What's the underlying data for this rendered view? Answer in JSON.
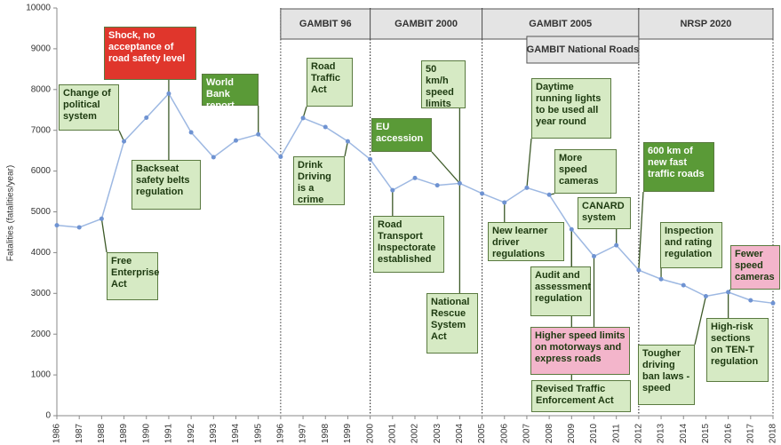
{
  "chart_data": {
    "type": "line",
    "y_label": "Fatalities (fatalities/year)",
    "x": [
      1986,
      1987,
      1988,
      1989,
      1990,
      1991,
      1992,
      1993,
      1994,
      1995,
      1996,
      1997,
      1998,
      1999,
      2000,
      2001,
      2002,
      2003,
      2004,
      2005,
      2006,
      2007,
      2008,
      2009,
      2010,
      2011,
      2012,
      2013,
      2014,
      2015,
      2016,
      2017,
      2018
    ],
    "series": [
      {
        "name": "Fatalities",
        "color": "#9db8e2",
        "values": [
          4670,
          4620,
          4830,
          6730,
          7310,
          7900,
          6950,
          6340,
          6750,
          6900,
          6350,
          7300,
          7080,
          6730,
          6290,
          5530,
          5830,
          5650,
          5700,
          5450,
          5230,
          5590,
          5420,
          4570,
          3910,
          4180,
          3570,
          3350,
          3200,
          2930,
          3030,
          2830,
          2760
        ]
      }
    ],
    "xlim": [
      1986,
      2018
    ],
    "xticks": [
      1986,
      1987,
      1988,
      1989,
      1990,
      1991,
      1992,
      1993,
      1994,
      1995,
      1996,
      1997,
      1998,
      1999,
      2000,
      2001,
      2002,
      2003,
      2004,
      2005,
      2006,
      2007,
      2008,
      2009,
      2010,
      2011,
      2012,
      2013,
      2014,
      2015,
      2016,
      2017,
      2018
    ],
    "ylim": [
      0,
      10000
    ],
    "yticks": [
      0,
      1000,
      2000,
      3000,
      4000,
      5000,
      6000,
      7000,
      8000,
      9000,
      10000
    ],
    "grid": false,
    "periods": [
      {
        "label": "GAMBIT 96",
        "start": 1996,
        "end": 2000
      },
      {
        "label": "GAMBIT 2000",
        "start": 2000,
        "end": 2005
      },
      {
        "label": "GAMBIT 2005",
        "start": 2005,
        "end": 2012
      },
      {
        "label": "NRSP 2020",
        "start": 2012,
        "end": 2018
      }
    ],
    "sub_periods": [
      {
        "label": "GAMBIT National Roads",
        "start": 2007,
        "end": 2012
      }
    ],
    "annotations": [
      {
        "text": "Change of political system",
        "year": 1989,
        "color": "#d6eac4",
        "text_color": "#1d3a10"
      },
      {
        "text": "Shock, no acceptance of road safety level",
        "year": 1991,
        "color": "#e0362c",
        "text_color": "#ffffff"
      },
      {
        "text": "Backseat safety belts regulation",
        "year": 1991,
        "color": "#d6eac4",
        "text_color": "#1d3a10"
      },
      {
        "text": "World Bank report",
        "year": 1995,
        "color": "#5a9a37",
        "text_color": "#ffffff"
      },
      {
        "text": "Free Enterprise Act",
        "year": 1988,
        "color": "#d6eac4",
        "text_color": "#1d3a10"
      },
      {
        "text": "Road Traffic Act",
        "year": 1997,
        "color": "#d6eac4",
        "text_color": "#1d3a10"
      },
      {
        "text": "Drink Driving is a crime",
        "year": 1999,
        "color": "#d6eac4",
        "text_color": "#1d3a10"
      },
      {
        "text": "EU accession",
        "year": 2004,
        "color": "#5a9a37",
        "text_color": "#ffffff"
      },
      {
        "text": "50 km/h speed limits",
        "year": 2004,
        "color": "#d6eac4",
        "text_color": "#1d3a10"
      },
      {
        "text": "Road Transport Inspectorate established",
        "year": 2001,
        "color": "#d6eac4",
        "text_color": "#1d3a10"
      },
      {
        "text": "National Rescue System Act",
        "year": 2004,
        "color": "#d6eac4",
        "text_color": "#1d3a10"
      },
      {
        "text": "Daytime running lights to be used all year round",
        "year": 2007,
        "color": "#d6eac4",
        "text_color": "#1d3a10"
      },
      {
        "text": "More speed cameras",
        "year": 2008,
        "color": "#d6eac4",
        "text_color": "#1d3a10"
      },
      {
        "text": "New learner driver regulations",
        "year": 2006,
        "color": "#d6eac4",
        "text_color": "#1d3a10"
      },
      {
        "text": "CANARD system",
        "year": 2011,
        "color": "#d6eac4",
        "text_color": "#1d3a10"
      },
      {
        "text": "Audit and assessment regulation",
        "year": 2009,
        "color": "#d6eac4",
        "text_color": "#1d3a10"
      },
      {
        "text": "Higher speed limits on motorways and express roads",
        "year": 2010,
        "color": "#f3b5cb",
        "text_color": "#1d3a10"
      },
      {
        "text": "Revised Traffic Enforcement Act",
        "year": 2009,
        "color": "#d6eac4",
        "text_color": "#1d3a10"
      },
      {
        "text": "600 km of new fast traffic roads",
        "year": 2012,
        "color": "#5a9a37",
        "text_color": "#ffffff"
      },
      {
        "text": "Inspection and rating regulation",
        "year": 2013,
        "color": "#d6eac4",
        "text_color": "#1d3a10"
      },
      {
        "text": "Fewer speed cameras",
        "year": 2016,
        "color": "#f3b5cb",
        "text_color": "#1d3a10"
      },
      {
        "text": "Tougher driving ban laws - speed",
        "year": 2015,
        "color": "#d6eac4",
        "text_color": "#1d3a10"
      },
      {
        "text": "High-risk sections on TEN-T regulation",
        "year": 2016,
        "color": "#d6eac4",
        "text_color": "#1d3a10"
      }
    ]
  }
}
